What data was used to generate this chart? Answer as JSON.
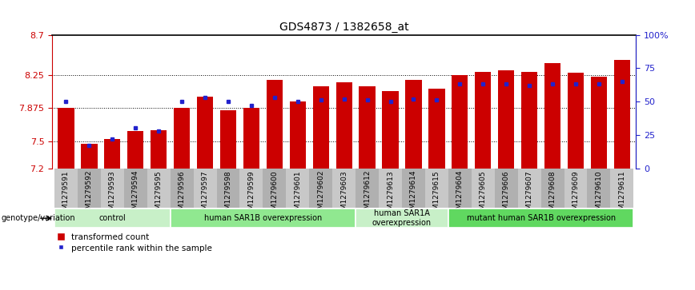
{
  "title": "GDS4873 / 1382658_at",
  "samples": [
    "GSM1279591",
    "GSM1279592",
    "GSM1279593",
    "GSM1279594",
    "GSM1279595",
    "GSM1279596",
    "GSM1279597",
    "GSM1279598",
    "GSM1279599",
    "GSM1279600",
    "GSM1279601",
    "GSM1279602",
    "GSM1279603",
    "GSM1279612",
    "GSM1279613",
    "GSM1279614",
    "GSM1279615",
    "GSM1279604",
    "GSM1279605",
    "GSM1279606",
    "GSM1279607",
    "GSM1279608",
    "GSM1279609",
    "GSM1279610",
    "GSM1279611"
  ],
  "red_values": [
    7.875,
    7.475,
    7.53,
    7.62,
    7.63,
    7.88,
    8.0,
    7.85,
    7.88,
    8.19,
    7.95,
    8.12,
    8.17,
    8.12,
    8.07,
    8.19,
    8.09,
    8.25,
    8.28,
    8.3,
    8.28,
    8.38,
    8.27,
    8.23,
    8.42
  ],
  "blue_values": [
    50,
    17,
    22,
    30,
    28,
    50,
    53,
    50,
    47,
    53,
    50,
    51,
    52,
    51,
    50,
    52,
    51,
    63,
    63,
    63,
    62,
    63,
    63,
    63,
    65
  ],
  "ymin": 7.2,
  "ymax": 8.7,
  "yticks": [
    7.2,
    7.5,
    7.875,
    8.25,
    8.7
  ],
  "ytick_labels": [
    "7.2",
    "7.5",
    "7.875",
    "8.25",
    "8.7"
  ],
  "y2ticks": [
    0,
    25,
    50,
    75,
    100
  ],
  "y2tick_labels": [
    "0",
    "25",
    "50",
    "75",
    "100%"
  ],
  "dotted_lines": [
    7.5,
    7.875,
    8.25
  ],
  "bar_color": "#cc0000",
  "marker_color": "#2222cc",
  "baseline": 7.2,
  "groups": [
    {
      "label": "control",
      "start": 0,
      "end": 5,
      "color": "#c8f0c8"
    },
    {
      "label": "human SAR1B overexpression",
      "start": 5,
      "end": 13,
      "color": "#90e890"
    },
    {
      "label": "human SAR1A\noverexpression",
      "start": 13,
      "end": 17,
      "color": "#c8f0c8"
    },
    {
      "label": "mutant human SAR1B overexpression",
      "start": 17,
      "end": 25,
      "color": "#60d860"
    }
  ],
  "legend_label_red": "transformed count",
  "legend_label_blue": "percentile rank within the sample",
  "genotype_label": "genotype/variation",
  "left_axis_color": "#cc0000",
  "right_axis_color": "#2222cc"
}
